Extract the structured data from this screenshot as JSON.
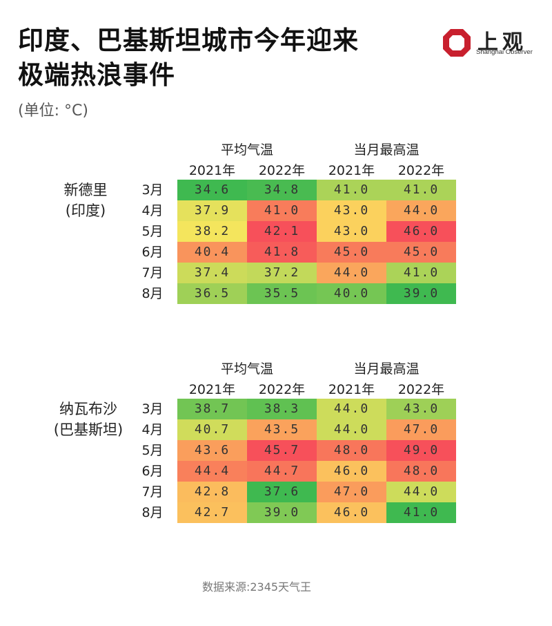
{
  "title_line1": "印度、巴基斯坦城市今年迎来",
  "title_line2": "极端热浪事件",
  "unit": "(单位: °C)",
  "logo": {
    "cn": "上观",
    "en": "Shanghai Observer",
    "color": "#c8202e"
  },
  "source": "数据来源:2345天气王",
  "color_scale": {
    "low": "#3fb950",
    "mid": "#fce75e",
    "high": "#f7505a"
  },
  "chart_data": {
    "type": "heatmap",
    "groups": [
      "平均气温",
      "当月最高温"
    ],
    "years": [
      "2021年",
      "2022年"
    ],
    "blocks": [
      {
        "city_line1": "新德里",
        "city_line2": "(印度)",
        "months": [
          "3月",
          "4月",
          "5月",
          "6月",
          "7月",
          "8月"
        ],
        "rows": [
          [
            "34.6",
            "34.8",
            "41.0",
            "41.0"
          ],
          [
            "37.9",
            "41.0",
            "43.0",
            "44.0"
          ],
          [
            "38.2",
            "42.1",
            "43.0",
            "46.0"
          ],
          [
            "40.4",
            "41.8",
            "45.0",
            "45.0"
          ],
          [
            "37.4",
            "37.2",
            "44.0",
            "41.0"
          ],
          [
            "36.5",
            "35.5",
            "40.0",
            "39.0"
          ]
        ],
        "avg_range": [
          34.6,
          42.1
        ],
        "max_range": [
          39.0,
          46.0
        ]
      },
      {
        "city_line1": "纳瓦布沙",
        "city_line2": "(巴基斯坦)",
        "months": [
          "3月",
          "4月",
          "5月",
          "6月",
          "7月",
          "8月"
        ],
        "rows": [
          [
            "38.7",
            "38.3",
            "44.0",
            "43.0"
          ],
          [
            "40.7",
            "43.5",
            "44.0",
            "47.0"
          ],
          [
            "43.6",
            "45.7",
            "48.0",
            "49.0"
          ],
          [
            "44.4",
            "44.7",
            "46.0",
            "48.0"
          ],
          [
            "42.8",
            "37.6",
            "47.0",
            "44.0"
          ],
          [
            "42.7",
            "39.0",
            "46.0",
            "41.0"
          ]
        ],
        "avg_range": [
          37.6,
          45.7
        ],
        "max_range": [
          41.0,
          49.0
        ]
      }
    ]
  }
}
